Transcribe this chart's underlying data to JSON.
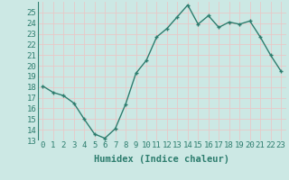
{
  "x": [
    0,
    1,
    2,
    3,
    4,
    5,
    6,
    7,
    8,
    9,
    10,
    11,
    12,
    13,
    14,
    15,
    16,
    17,
    18,
    19,
    20,
    21,
    22,
    23
  ],
  "y": [
    18.1,
    17.5,
    17.2,
    16.5,
    15.0,
    13.6,
    13.2,
    14.1,
    16.4,
    19.3,
    20.5,
    22.7,
    23.5,
    24.6,
    25.7,
    23.9,
    24.7,
    23.6,
    24.1,
    23.9,
    24.2,
    22.7,
    21.0,
    19.5
  ],
  "line_color": "#2d7d6e",
  "marker": "+",
  "marker_color": "#2d7d6e",
  "bg_color": "#cce8e4",
  "grid_color": "#b0d8d2",
  "xlabel": "Humidex (Indice chaleur)",
  "ylim": [
    13,
    26
  ],
  "xlim": [
    -0.5,
    23.5
  ],
  "yticks": [
    13,
    14,
    15,
    16,
    17,
    18,
    19,
    20,
    21,
    22,
    23,
    24,
    25
  ],
  "xticks": [
    0,
    1,
    2,
    3,
    4,
    5,
    6,
    7,
    8,
    9,
    10,
    11,
    12,
    13,
    14,
    15,
    16,
    17,
    18,
    19,
    20,
    21,
    22,
    23
  ],
  "xlabel_fontsize": 7.5,
  "tick_fontsize": 6.5,
  "line_width": 1.0,
  "marker_size": 3.5
}
